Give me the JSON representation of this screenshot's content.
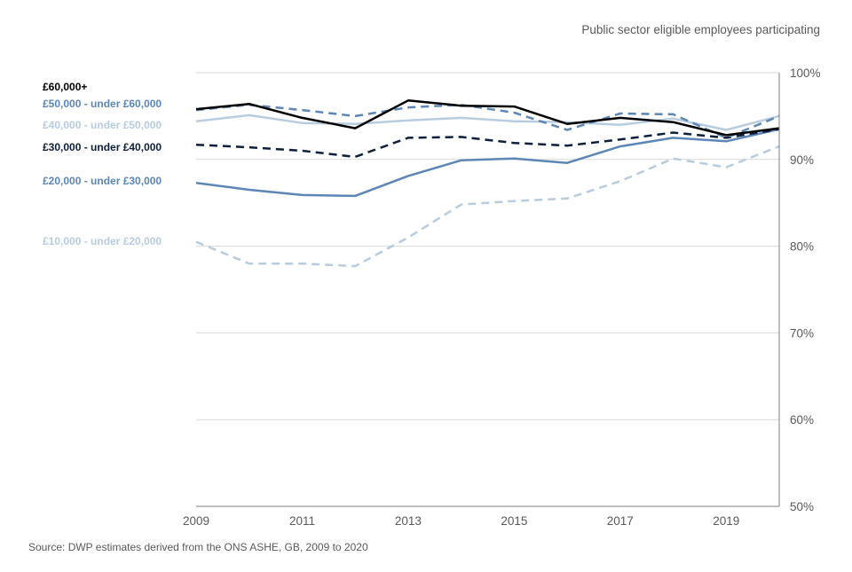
{
  "chart_data": {
    "type": "line",
    "title": "Public sector eligible  employees participating",
    "source": "Source:  DWP estimates derived  from the ONS ASHE, GB, 2009  to 2020",
    "x": [
      2009,
      2010,
      2011,
      2012,
      2013,
      2014,
      2015,
      2016,
      2017,
      2018,
      2019,
      2020
    ],
    "xlim": [
      2009,
      2020
    ],
    "x_tick_labels": [
      "2009",
      "2011",
      "2013",
      "2015",
      "2017",
      "2019"
    ],
    "ylim": [
      50,
      100
    ],
    "y_tick_labels": [
      "100%",
      "90%",
      "80%",
      "70%",
      "60%",
      "50%"
    ],
    "y_ticks": [
      100,
      90,
      80,
      70,
      60,
      50
    ],
    "grid": true,
    "legend_placement": "left",
    "series": [
      {
        "name": "£10,000  - under £20,000",
        "color": "#b8cce0",
        "style": "dashed",
        "values": [
          80.5,
          78.0,
          78.0,
          77.7,
          81.0,
          84.8,
          85.2,
          85.5,
          87.5,
          90.1,
          89.1,
          91.5
        ]
      },
      {
        "name": "£20,000  - under £30,000",
        "color": "#5b86b6",
        "style": "solid",
        "values": [
          87.3,
          86.5,
          85.9,
          85.8,
          88.1,
          89.9,
          90.1,
          89.6,
          91.5,
          92.5,
          92.1,
          93.5
        ]
      },
      {
        "name": "£30,000  - under £40,000",
        "color": "#0d1f3c",
        "style": "dashed",
        "values": [
          91.7,
          91.4,
          91.0,
          90.3,
          92.5,
          92.6,
          91.9,
          91.6,
          92.3,
          93.1,
          92.5,
          93.5
        ]
      },
      {
        "name": "£40,000  - under £50,000",
        "color": "#b8cce0",
        "style": "solid",
        "values": [
          94.4,
          95.1,
          94.2,
          94.1,
          94.5,
          94.8,
          94.4,
          94.3,
          94.0,
          94.7,
          93.4,
          95.0
        ]
      },
      {
        "name": "£50,000  - under £60,000",
        "color": "#5b86b6",
        "style": "dashed",
        "values": [
          95.7,
          96.3,
          95.7,
          95.0,
          96.0,
          96.3,
          95.4,
          93.4,
          95.3,
          95.2,
          92.5,
          95.0
        ]
      },
      {
        "name": "£60,000+",
        "color": "#000000",
        "style": "solid",
        "values": [
          95.8,
          96.4,
          94.8,
          93.6,
          96.8,
          96.2,
          96.1,
          94.1,
          94.8,
          94.3,
          92.8,
          93.6
        ]
      }
    ]
  }
}
